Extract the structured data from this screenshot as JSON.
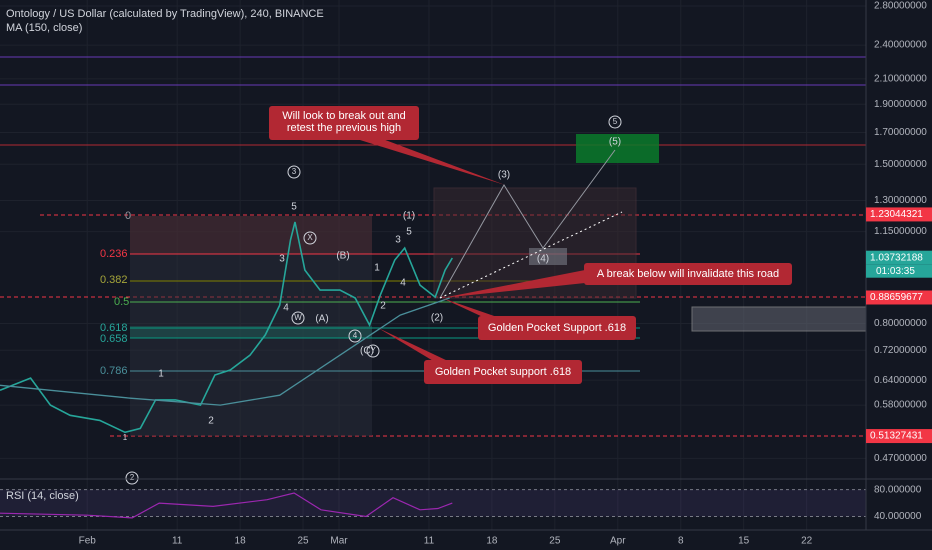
{
  "chart_data": {
    "type": "line",
    "title": "Ontology / US Dollar (calculated by TradingView), 240, BINANCE",
    "indicator": "MA (150, close)",
    "rsi_title": "RSI (14, close)",
    "log_scale": true,
    "ylim": [
      0.435,
      2.867
    ],
    "xlim": [
      -9.7,
      86.6
    ],
    "yticks": [
      {
        "value": 2.8,
        "label": "2.80000000"
      },
      {
        "value": 2.4,
        "label": "2.40000000"
      },
      {
        "value": 2.1,
        "label": "2.10000000"
      },
      {
        "value": 1.9,
        "label": "1.90000000"
      },
      {
        "value": 1.7,
        "label": "1.70000000"
      },
      {
        "value": 1.5,
        "label": "1.50000000"
      },
      {
        "value": 1.3,
        "label": "1.30000000"
      },
      {
        "value": 1.15,
        "label": "1.15000000"
      },
      {
        "value": 0.8,
        "label": "0.80000000"
      },
      {
        "value": 0.72,
        "label": "0.72000000"
      },
      {
        "value": 0.64,
        "label": "0.64000000"
      },
      {
        "value": 0.58,
        "label": "0.58000000"
      },
      {
        "value": 0.47,
        "label": "0.47000000"
      }
    ],
    "xticks": [
      {
        "value": 0,
        "label": "Feb"
      },
      {
        "value": 10,
        "label": "11"
      },
      {
        "value": 17,
        "label": "18"
      },
      {
        "value": 24,
        "label": "25"
      },
      {
        "value": 28,
        "label": "Mar"
      },
      {
        "value": 38,
        "label": "11"
      },
      {
        "value": 45,
        "label": "18"
      },
      {
        "value": 52,
        "label": "25"
      },
      {
        "value": 59,
        "label": "Apr"
      },
      {
        "value": 66,
        "label": "8"
      },
      {
        "value": 73,
        "label": "15"
      },
      {
        "value": 80,
        "label": "22"
      }
    ],
    "series": [
      {
        "color": "#26a69a",
        "x": [
          -9.7,
          -6.3,
          -4.1,
          -1.9,
          1.4,
          4.2,
          5.9,
          7.6,
          9.8,
          12.6,
          14.2,
          15.9,
          18.1,
          19.8,
          21.4,
          22.6,
          23.1,
          24.2,
          25.9,
          28.1,
          29.8,
          31.4,
          32.6,
          34.2,
          35.3,
          37,
          38.7,
          39.8,
          40.6
        ],
        "values": [
          0.615,
          0.645,
          0.58,
          0.557,
          0.546,
          0.521,
          0.529,
          0.592,
          0.592,
          0.58,
          0.653,
          0.666,
          0.706,
          0.765,
          0.86,
          1.113,
          1.194,
          0.988,
          0.913,
          0.913,
          0.885,
          0.795,
          0.896,
          1.028,
          1.078,
          0.931,
          0.888,
          0.988,
          1.036
        ]
      },
      {
        "color": "#4a8f9a",
        "x": [
          -9.7,
          4.8,
          14.8,
          21.4,
          28.1,
          34.8,
          40.3
        ],
        "values": [
          0.627,
          0.596,
          0.58,
          0.603,
          0.706,
          0.827,
          0.885
        ]
      }
    ],
    "price_labels": [
      {
        "value": 1.23044321,
        "color": "#f23645"
      },
      {
        "value": 1.03732188,
        "color": "#26a69a"
      },
      {
        "value": 0.88659677,
        "color": "#f23645"
      },
      {
        "value": 0.51327431,
        "color": "#f23645"
      }
    ],
    "countdown": "01:03:35",
    "rsi": {
      "color": "#9c27b0",
      "ylim": [
        20,
        94.3
      ],
      "yticks": [
        {
          "value": 80,
          "label": "80.000000"
        },
        {
          "value": 40,
          "label": "40.000000"
        }
      ],
      "x": [
        -9.7,
        0,
        5,
        8,
        14,
        20,
        23,
        26,
        31,
        34,
        37,
        39,
        40.6
      ],
      "values": [
        45,
        42,
        38,
        60,
        55,
        65,
        75,
        50,
        40,
        68,
        50,
        52,
        60
      ]
    },
    "fib_levels": [
      "0",
      "0.236",
      "0.382",
      "0.5",
      "0.618",
      "0.658",
      "0.786"
    ],
    "callouts": [
      "Will look to break out and",
      "retest the previous high",
      "A break below will invalidate this road",
      "Golden Pocket Support .618",
      "Golden Pocket support .618"
    ],
    "wave_labels": [
      "5",
      "3",
      "X",
      "(B)",
      "4",
      "W",
      "(A)",
      "1",
      "2",
      "1",
      "2",
      "3",
      "1",
      "2",
      "3",
      "5",
      "(1)",
      "4",
      "4",
      "(C)",
      "Y",
      "(2)",
      "(3)",
      "(4)",
      "(5)",
      "5"
    ]
  }
}
